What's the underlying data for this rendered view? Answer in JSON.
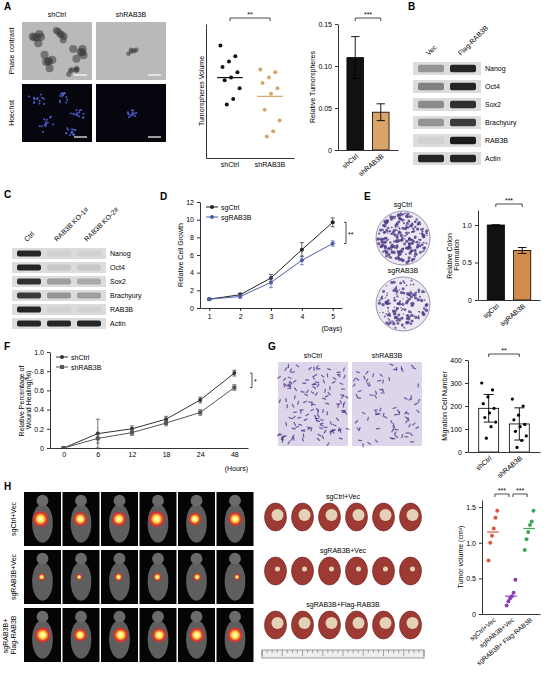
{
  "panel_letters": [
    "A",
    "B",
    "C",
    "D",
    "E",
    "F",
    "G",
    "H"
  ],
  "panel_a_images": {
    "columns": [
      "shCtrl",
      "shRAB3B"
    ],
    "rows": [
      "Phase contrast",
      "Hoechst"
    ]
  },
  "blots": [
    {
      "lanes": [
        "Vec",
        "Flag-RAB3B"
      ],
      "proteins": [
        "Nanog",
        "Oct4",
        "Sox2",
        "Brachyury",
        "RAB3B",
        "Actin"
      ],
      "bands": [
        [
          0.35,
          0.9
        ],
        [
          0.45,
          0.9
        ],
        [
          0.4,
          0.85
        ],
        [
          0.35,
          0.8
        ],
        [
          0.05,
          0.95
        ],
        [
          0.9,
          0.9
        ]
      ]
    },
    {
      "lanes": [
        "Ctrl",
        "RAB3B KO-1#",
        "RAB3B KO-2#"
      ],
      "proteins": [
        "Nanog",
        "Oct4",
        "Sox2",
        "Brachyury",
        "RAB3B",
        "Actin"
      ],
      "bands": [
        [
          0.9,
          0.05,
          0.05
        ],
        [
          0.9,
          0.1,
          0.1
        ],
        [
          0.85,
          0.3,
          0.25
        ],
        [
          0.8,
          0.35,
          0.3
        ],
        [
          0.9,
          0.05,
          0.05
        ],
        [
          0.9,
          0.9,
          0.9
        ]
      ]
    }
  ],
  "panel_e_images": {
    "labels": [
      "sgCtrl",
      "sgRAB3B"
    ]
  },
  "panel_g_images": {
    "labels": [
      "shCtrl",
      "shRAB3B"
    ]
  },
  "panel_h": {
    "mouse_rows": [
      "sgCtrl+Vec",
      "sgRAB3B+Vec",
      "sgRAB3B+ Flag-RAB3B"
    ],
    "tumor_rows": [
      "sgCtrl+Vec",
      "sgRAB3B+Vec",
      "sgRAB3B+Flag-RAB3B"
    ]
  },
  "chart_data": [
    {
      "type": "scatter",
      "y_label": "Tumorspheres Volume",
      "categories": [
        "shCtrl",
        "shRAB3B"
      ],
      "values": [
        [
          112,
          108,
          106,
          104,
          102,
          100,
          99,
          96,
          92,
          90
        ],
        [
          103,
          102,
          100,
          98,
          96,
          94,
          88,
          84,
          80,
          78
        ]
      ],
      "means": [
        100,
        93
      ],
      "colors": [
        "#111111",
        "#d9a46a"
      ],
      "ylim": [
        70,
        120
      ],
      "tick_labels": "x",
      "annotations": [
        "**"
      ]
    },
    {
      "type": "bar",
      "y_label": "Relative Tumorspheres",
      "categories": [
        "shCtrl",
        "shRAB3B"
      ],
      "values": [
        0.11,
        0.045
      ],
      "errors": [
        0.025,
        0.01
      ],
      "colors": [
        "#111111",
        "#d9a46a"
      ],
      "ylim": [
        0,
        0.15
      ],
      "yticks": [
        0,
        0.05,
        {
          "value": 0.1,
          "label": "0.10"
        },
        0.15
      ],
      "annotations": [
        "***"
      ]
    },
    {
      "type": "line",
      "y_label": "Relative Cell Growth",
      "x_label": "(Days)",
      "x": [
        1,
        2,
        3,
        4,
        5
      ],
      "xlim": [
        0.7,
        5.3
      ],
      "xticks": [
        1,
        2,
        3,
        4,
        5
      ],
      "ylim": [
        0,
        12
      ],
      "yticks": [
        0,
        2,
        4,
        6,
        8,
        10,
        12
      ],
      "legend": "top-left",
      "series": [
        {
          "name": "sgCtrl",
          "color": "#222222",
          "marker": "circle",
          "values": [
            1,
            1.5,
            3.4,
            6.6,
            9.7
          ],
          "errors": [
            0.1,
            0.2,
            0.4,
            0.8,
            0.5
          ]
        },
        {
          "name": "sgRAB3B",
          "color": "#4a5fa8",
          "marker": "circle",
          "values": [
            1,
            1.3,
            2.9,
            5.4,
            7.3
          ],
          "errors": [
            0.1,
            0.2,
            0.6,
            0.5,
            0.3
          ]
        }
      ],
      "annotations": [
        "**"
      ]
    },
    {
      "type": "bar",
      "y_label": "Relative Colon Formation",
      "categories": [
        "sgCtrl",
        "sgRAB3B"
      ],
      "values": [
        1,
        0.66
      ],
      "errors": [
        0,
        0.04
      ],
      "colors": [
        "#111111",
        "#d28b4a"
      ],
      "ylim": [
        0,
        1.2
      ],
      "yticks": [
        0,
        0.5,
        {
          "value": 1,
          "label": "1.0"
        }
      ],
      "annotations": [
        "***"
      ]
    },
    {
      "type": "line",
      "y_label": "Relative Percentage of Wound Healing(%)",
      "x_label": "(Hours)",
      "categories": [
        "0",
        "6",
        "12",
        "18",
        "24",
        "48"
      ],
      "ylim": [
        0,
        1
      ],
      "yticks": [
        0,
        0.2,
        0.4,
        0.6,
        0.8,
        {
          "value": 1,
          "label": "1.0"
        }
      ],
      "legend": "top-left",
      "series": [
        {
          "name": "shCtrl",
          "color": "#333333",
          "marker": "circle",
          "values": [
            0,
            0.15,
            0.2,
            0.3,
            0.5,
            0.78
          ],
          "errors": [
            0,
            0.15,
            0.03,
            0.03,
            0.03,
            0.03
          ]
        },
        {
          "name": "shRAB3B",
          "color": "#555555",
          "marker": "square",
          "values": [
            0,
            0.1,
            0.16,
            0.26,
            0.37,
            0.63
          ],
          "errors": [
            0,
            0.05,
            0.03,
            0.03,
            0.03,
            0.03
          ]
        }
      ],
      "annotations": [
        "*"
      ]
    },
    {
      "type": "bar",
      "y_label": "Migration Cell Number",
      "categories": [
        "shCtrl",
        "shRAB3B"
      ],
      "values": [
        190,
        122
      ],
      "errors": [
        60,
        70
      ],
      "points": [
        [
          300,
          270,
          240,
          210,
          190,
          170,
          150,
          130,
          110,
          60
        ],
        [
          230,
          200,
          160,
          140,
          120,
          110,
          90,
          70,
          50,
          20
        ]
      ],
      "colors": [
        "#ffffff",
        "#ffffff"
      ],
      "ylim": [
        0,
        400
      ],
      "yticks": [
        0,
        100,
        200,
        300,
        400
      ],
      "annotations": [
        "**"
      ]
    },
    {
      "type": "scatter",
      "y_label": "Tumor volume (cm³)",
      "categories": [
        "sgCtrl+Vec",
        "sgRAB3B+Vec",
        "sgRAB3B+ Flag-RAB3B"
      ],
      "values": [
        [
          0.75,
          1.0,
          1.1,
          1.2,
          1.35,
          1.45
        ],
        [
          0.12,
          0.18,
          0.22,
          0.25,
          0.3,
          0.48
        ],
        [
          0.9,
          1.05,
          1.15,
          1.25,
          1.3,
          1.45
        ]
      ],
      "means": [
        1.15,
        0.25,
        1.2
      ],
      "colors": [
        "#e0553a",
        "#8b3fb5",
        "#3aa85a"
      ],
      "ylim": [
        0,
        1.6
      ],
      "yticks": [
        0,
        0.5,
        {
          "value": 1,
          "label": "1.0"
        },
        1.5
      ],
      "annotations": [
        "***",
        "***"
      ]
    }
  ]
}
